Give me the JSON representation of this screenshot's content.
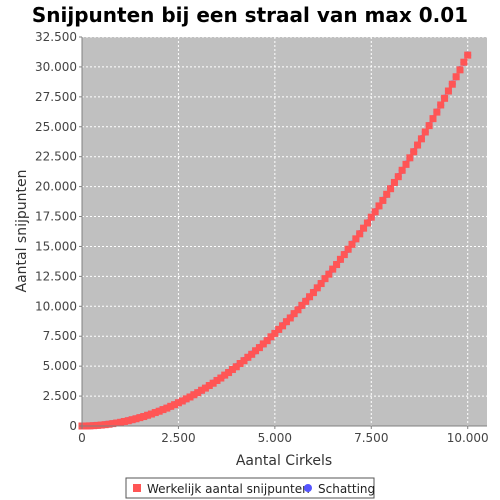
{
  "chart_data": {
    "type": "scatter",
    "title": "Snijpunten bij een straal van max 0.01",
    "xlabel": "Aantal Cirkels",
    "ylabel": "Aantal snijpunten",
    "xlim": [
      0,
      10500
    ],
    "ylim": [
      0,
      32500
    ],
    "xticks": [
      0,
      2500,
      5000,
      7500,
      10000
    ],
    "xtick_labels": [
      "0",
      "2.500",
      "5.000",
      "7.500",
      "10.000"
    ],
    "yticks": [
      0,
      2500,
      5000,
      7500,
      10000,
      12500,
      15000,
      17500,
      20000,
      22500,
      25000,
      27500,
      30000,
      32500
    ],
    "ytick_labels": [
      "0",
      "2.500",
      "5.000",
      "7.500",
      "10.000",
      "12.500",
      "15.000",
      "17.500",
      "20.000",
      "22.500",
      "25.000",
      "27.500",
      "30.000",
      "32.500"
    ],
    "grid": true,
    "legend_position": "bottom",
    "series": [
      {
        "name": "Schatting",
        "marker": "circle",
        "color": "#5555ff",
        "x": [
          0,
          100,
          200,
          300,
          400,
          500,
          600,
          700,
          800,
          900,
          1000,
          1100,
          1200,
          1300,
          1400,
          1500,
          1600,
          1700,
          1800,
          1900,
          2000,
          2100,
          2200,
          2300,
          2400,
          2500,
          2600,
          2700,
          2800,
          2900,
          3000,
          3100,
          3200,
          3300,
          3400,
          3500,
          3600,
          3700,
          3800,
          3900,
          4000,
          4100,
          4200,
          4300,
          4400,
          4500,
          4600,
          4700,
          4800,
          4900,
          5000,
          5100,
          5200,
          5300,
          5400,
          5500,
          5600,
          5700,
          5800,
          5900,
          6000,
          6100,
          6200,
          6300,
          6400,
          6500,
          6600,
          6700,
          6800,
          6900,
          7000,
          7100,
          7200,
          7300,
          7400,
          7500,
          7600,
          7700,
          7800,
          7900,
          8000,
          8100,
          8200,
          8300,
          8400,
          8500,
          8600,
          8700,
          8800,
          8900,
          9000,
          9100,
          9200,
          9300,
          9400,
          9500,
          9600,
          9700,
          9800,
          9900,
          10000
        ],
        "y": [
          0,
          3,
          12,
          28,
          50,
          78,
          112,
          152,
          199,
          251,
          310,
          375,
          446,
          524,
          608,
          698,
          794,
          896,
          1004,
          1119,
          1240,
          1367,
          1500,
          1640,
          1786,
          1938,
          2096,
          2260,
          2430,
          2607,
          2790,
          2979,
          3174,
          3376,
          3584,
          3798,
          4018,
          4244,
          4476,
          4715,
          4960,
          5211,
          5468,
          5732,
          6002,
          6278,
          6560,
          6848,
          7142,
          7443,
          7750,
          8063,
          8382,
          8708,
          9040,
          9378,
          9722,
          10072,
          10428,
          10791,
          11160,
          11535,
          11916,
          12304,
          12698,
          13098,
          13504,
          13916,
          14334,
          14759,
          15190,
          15627,
          16070,
          16520,
          16976,
          17438,
          17906,
          18380,
          18860,
          19347,
          19840,
          20339,
          20844,
          21356,
          21874,
          22398,
          22928,
          23464,
          24006,
          24555,
          25110,
          25671,
          26238,
          26812,
          27392,
          27978,
          28570,
          29168,
          29772,
          30383,
          31000
        ]
      },
      {
        "name": "Werkelijk aantal snijpunten",
        "marker": "square",
        "color": "#ff5555",
        "x": [
          0,
          100,
          200,
          300,
          400,
          500,
          600,
          700,
          800,
          900,
          1000,
          1100,
          1200,
          1300,
          1400,
          1500,
          1600,
          1700,
          1800,
          1900,
          2000,
          2100,
          2200,
          2300,
          2400,
          2500,
          2600,
          2700,
          2800,
          2900,
          3000,
          3100,
          3200,
          3300,
          3400,
          3500,
          3600,
          3700,
          3800,
          3900,
          4000,
          4100,
          4200,
          4300,
          4400,
          4500,
          4600,
          4700,
          4800,
          4900,
          5000,
          5100,
          5200,
          5300,
          5400,
          5500,
          5600,
          5700,
          5800,
          5900,
          6000,
          6100,
          6200,
          6300,
          6400,
          6500,
          6600,
          6700,
          6800,
          6900,
          7000,
          7100,
          7200,
          7300,
          7400,
          7500,
          7600,
          7700,
          7800,
          7900,
          8000,
          8100,
          8200,
          8300,
          8400,
          8500,
          8600,
          8700,
          8800,
          8900,
          9000,
          9100,
          9200,
          9300,
          9400,
          9500,
          9600,
          9700,
          9800,
          9900,
          10000
        ],
        "y": [
          0,
          3,
          12,
          28,
          51,
          77,
          112,
          150,
          200,
          250,
          308,
          378,
          443,
          526,
          605,
          700,
          790,
          898,
          1000,
          1122,
          1235,
          1371,
          1494,
          1645,
          1780,
          1942,
          2089,
          2266,
          2423,
          2612,
          2782,
          2986,
          3166,
          3382,
          3575,
          3805,
          4008,
          4252,
          4466,
          4722,
          4949,
          5220,
          5457,
          5741,
          5990,
          6287,
          6548,
          6858,
          7130,
          7452,
          7737,
          8072,
          8369,
          8717,
          9026,
          9387,
          9708,
          10081,
          10414,
          10800,
          11145,
          11544,
          11902,
          12313,
          12683,
          13107,
          13489,
          13925,
          14320,
          14768,
          15175,
          15636,
          16056,
          16529,
          16961,
          17447,
          17891,
          18389,
          18846,
          19356,
          19825,
          20348,
          20829,
          21365,
          21858,
          22406,
          22912,
          23473,
          23991,
          24564,
          25095,
          25680,
          26224,
          26822,
          27377,
          27988,
          28555,
          29179,
          29758,
          30394,
          30985
        ]
      }
    ]
  }
}
